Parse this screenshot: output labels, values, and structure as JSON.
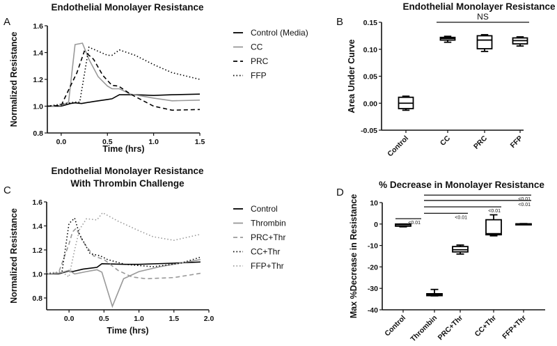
{
  "panels": {
    "A": "A",
    "B": "B",
    "C": "C",
    "D": "D"
  },
  "chart_data": [
    {
      "id": "A",
      "type": "line",
      "title": "Endothelial Monolayer  Resistance",
      "xlabel": "Time (hrs)",
      "ylabel": "Normalized Resistance",
      "xlim": [
        -0.15,
        1.5
      ],
      "ylim": [
        0.8,
        1.6
      ],
      "xticks": [
        "0.0",
        "0.5",
        "1.0",
        "1.5"
      ],
      "yticks": [
        "0.8",
        "1.0",
        "1.2",
        "1.4",
        "1.6"
      ],
      "legend_position": "right",
      "series": [
        {
          "name": "Control (Media)",
          "color": "#000000",
          "style": "solid",
          "points": [
            [
              -0.15,
              1.0
            ],
            [
              0,
              1.0
            ],
            [
              0.1,
              1.02
            ],
            [
              0.15,
              1.025
            ],
            [
              0.22,
              1.02
            ],
            [
              0.35,
              1.035
            ],
            [
              0.5,
              1.05
            ],
            [
              0.55,
              1.055
            ],
            [
              0.63,
              1.085
            ],
            [
              0.8,
              1.085
            ],
            [
              1.0,
              1.08
            ],
            [
              1.2,
              1.085
            ],
            [
              1.5,
              1.09
            ]
          ]
        },
        {
          "name": "CC",
          "color": "#999999",
          "style": "solid",
          "points": [
            [
              -0.15,
              1.0
            ],
            [
              0,
              1.005
            ],
            [
              0.08,
              1.03
            ],
            [
              0.15,
              1.46
            ],
            [
              0.23,
              1.47
            ],
            [
              0.3,
              1.35
            ],
            [
              0.4,
              1.22
            ],
            [
              0.5,
              1.15
            ],
            [
              0.55,
              1.13
            ],
            [
              0.63,
              1.13
            ],
            [
              0.75,
              1.09
            ],
            [
              1.0,
              1.06
            ],
            [
              1.2,
              1.04
            ],
            [
              1.5,
              1.045
            ]
          ]
        },
        {
          "name": "PRC",
          "color": "#000000",
          "style": "dashed",
          "points": [
            [
              -0.15,
              1.0
            ],
            [
              0,
              1.005
            ],
            [
              0.1,
              1.15
            ],
            [
              0.17,
              1.25
            ],
            [
              0.25,
              1.41
            ],
            [
              0.35,
              1.35
            ],
            [
              0.45,
              1.23
            ],
            [
              0.55,
              1.155
            ],
            [
              0.62,
              1.15
            ],
            [
              0.75,
              1.09
            ],
            [
              1.0,
              1.0
            ],
            [
              1.2,
              0.97
            ],
            [
              1.5,
              0.975
            ]
          ]
        },
        {
          "name": "FFP",
          "color": "#000000",
          "style": "dotted",
          "points": [
            [
              -0.15,
              1.0
            ],
            [
              0.15,
              1.03
            ],
            [
              0.2,
              1.03
            ],
            [
              0.3,
              1.44
            ],
            [
              0.4,
              1.41
            ],
            [
              0.5,
              1.38
            ],
            [
              0.55,
              1.38
            ],
            [
              0.63,
              1.42
            ],
            [
              0.8,
              1.38
            ],
            [
              1.0,
              1.31
            ],
            [
              1.2,
              1.25
            ],
            [
              1.5,
              1.2
            ]
          ]
        }
      ]
    },
    {
      "id": "B",
      "type": "box",
      "title": "Endothelial Monolayer  Resistance",
      "xlabel": "",
      "ylabel": "Area Under Curve",
      "ylim": [
        -0.05,
        0.15
      ],
      "yticks": [
        "-0.05",
        "0.00",
        "0.05",
        "0.10",
        "0.15"
      ],
      "categories": [
        "Control",
        "CC",
        "PRC",
        "FFP"
      ],
      "boxes": [
        {
          "min": -0.013,
          "q1": -0.01,
          "median": 0.0,
          "q3": 0.011,
          "max": 0.013
        },
        {
          "min": 0.113,
          "q1": 0.117,
          "median": 0.12,
          "q3": 0.122,
          "max": 0.124
        },
        {
          "min": 0.096,
          "q1": 0.101,
          "median": 0.117,
          "q3": 0.125,
          "max": 0.127
        },
        {
          "min": 0.106,
          "q1": 0.11,
          "median": 0.116,
          "q3": 0.121,
          "max": 0.123
        }
      ],
      "annotations": [
        {
          "from": "CC",
          "to": "FFP",
          "y": 0.15,
          "text": "NS"
        }
      ]
    },
    {
      "id": "C",
      "type": "line",
      "title": "Endothelial Monolayer Resistance",
      "subtitle": "With  Thrombin Challenge",
      "xlabel": "Time (hrs)",
      "ylabel": "Normalized Resistance",
      "xlim": [
        -0.32,
        2.0
      ],
      "ylim": [
        0.7,
        1.6
      ],
      "xticks": [
        "0.0",
        "0.5",
        "1.0",
        "1.5",
        "2.0"
      ],
      "yticks": [
        "0.8",
        "1.0",
        "1.2",
        "1.4",
        "1.6"
      ],
      "legend_position": "right",
      "series": [
        {
          "name": "Control",
          "color": "#000000",
          "style": "solid",
          "points": [
            [
              -0.32,
              1.0
            ],
            [
              -0.15,
              1.0
            ],
            [
              0,
              1.025
            ],
            [
              0.05,
              1.02
            ],
            [
              0.2,
              1.04
            ],
            [
              0.4,
              1.055
            ],
            [
              0.47,
              1.085
            ],
            [
              0.8,
              1.08
            ],
            [
              1.0,
              1.08
            ],
            [
              1.5,
              1.09
            ],
            [
              1.88,
              1.1
            ]
          ]
        },
        {
          "name": "Thrombin",
          "color": "#999999",
          "style": "solid",
          "points": [
            [
              -0.32,
              1.0
            ],
            [
              -0.15,
              1.005
            ],
            [
              0,
              1.03
            ],
            [
              0.08,
              1.0
            ],
            [
              0.25,
              1.02
            ],
            [
              0.4,
              1.035
            ],
            [
              0.47,
              1.015
            ],
            [
              0.62,
              0.73
            ],
            [
              0.78,
              0.96
            ],
            [
              1.0,
              1.02
            ],
            [
              1.3,
              1.06
            ],
            [
              1.88,
              1.12
            ]
          ]
        },
        {
          "name": "PRC+Thr",
          "color": "#999999",
          "style": "dashed",
          "points": [
            [
              -0.32,
              1.0
            ],
            [
              -0.15,
              1.01
            ],
            [
              0,
              1.25
            ],
            [
              0.05,
              1.35
            ],
            [
              0.1,
              1.38
            ],
            [
              0.2,
              1.27
            ],
            [
              0.35,
              1.15
            ],
            [
              0.5,
              1.12
            ],
            [
              0.7,
              1.03
            ],
            [
              0.9,
              0.975
            ],
            [
              1.1,
              0.96
            ],
            [
              1.5,
              0.97
            ],
            [
              1.88,
              1.005
            ]
          ]
        },
        {
          "name": "CC+Thr",
          "color": "#000000",
          "style": "dotted",
          "points": [
            [
              -0.32,
              1.0
            ],
            [
              -0.1,
              1.02
            ],
            [
              0,
              1.42
            ],
            [
              0.08,
              1.465
            ],
            [
              0.15,
              1.33
            ],
            [
              0.3,
              1.17
            ],
            [
              0.45,
              1.15
            ],
            [
              0.55,
              1.12
            ],
            [
              0.8,
              1.08
            ],
            [
              1.0,
              1.07
            ],
            [
              1.2,
              1.06
            ],
            [
              1.6,
              1.09
            ],
            [
              1.88,
              1.14
            ]
          ]
        },
        {
          "name": "FFP+Thr",
          "color": "#999999",
          "style": "dotted",
          "points": [
            [
              -0.32,
              1.01
            ],
            [
              -0.1,
              1.015
            ],
            [
              0,
              0.975
            ],
            [
              0.08,
              1.2
            ],
            [
              0.15,
              1.37
            ],
            [
              0.25,
              1.46
            ],
            [
              0.4,
              1.45
            ],
            [
              0.48,
              1.51
            ],
            [
              0.7,
              1.44
            ],
            [
              1.0,
              1.36
            ],
            [
              1.2,
              1.31
            ],
            [
              1.5,
              1.28
            ],
            [
              1.88,
              1.33
            ]
          ]
        }
      ]
    },
    {
      "id": "D",
      "type": "box",
      "title": "% Decrease in Monolayer Resistance",
      "xlabel": "",
      "ylabel": "Max %Decrease in  Resistance",
      "ylim": [
        -40,
        10
      ],
      "yticks": [
        "-40",
        "-30",
        "-20",
        "-10",
        "0",
        "10"
      ],
      "categories": [
        "Control",
        "Thrombin",
        "PRC+Thr",
        "CC+Thr",
        "FFP+Thr"
      ],
      "boxes": [
        {
          "min": -1.3,
          "q1": -1.0,
          "median": -0.3,
          "q3": 0.0,
          "max": 0.0
        },
        {
          "min": -33.5,
          "q1": -33.4,
          "median": -33.0,
          "q3": -32.5,
          "max": -30.5
        },
        {
          "min": -14.0,
          "q1": -13.0,
          "median": -12.0,
          "q3": -10.5,
          "max": -9.8
        },
        {
          "min": -5.5,
          "q1": -5.0,
          "median": -4.5,
          "q3": 2.0,
          "max": 4.3
        },
        {
          "min": -0.2,
          "q1": -0.1,
          "median": 0.0,
          "q3": 0.1,
          "max": 0.2
        }
      ],
      "annotations": [
        {
          "from": "Control",
          "to": "Control",
          "y": 2.5,
          "text": "<0.01"
        },
        {
          "from": "Thrombin",
          "to": "PRC+Thr",
          "y": 5.0,
          "text": "<0.01"
        },
        {
          "from": "Thrombin",
          "to": "CC+Thr",
          "y": 8.0,
          "text": "<0.01"
        },
        {
          "from": "Thrombin",
          "to": "FFP+Thr",
          "y": 11.0,
          "text": "<0.01"
        },
        {
          "from": "Thrombin",
          "to": "FFP+Thr",
          "y": 13.5,
          "text": "<0.01"
        }
      ]
    }
  ]
}
